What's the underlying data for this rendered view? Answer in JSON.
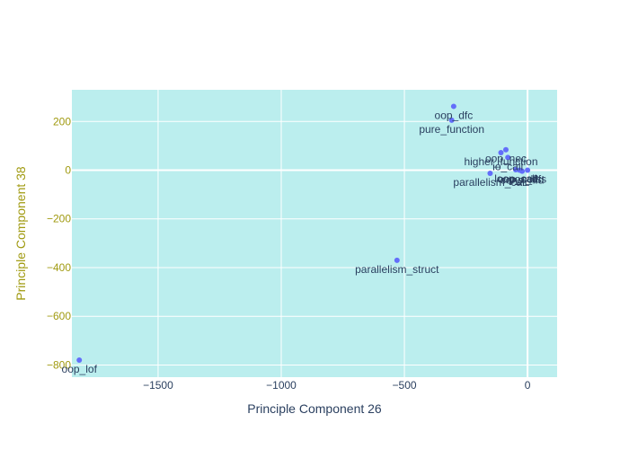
{
  "chart_data": {
    "type": "scatter",
    "title": "",
    "xlabel": "Principle Component 26",
    "ylabel": "Principle Component 38",
    "xlim": [
      -1850,
      120
    ],
    "ylim": [
      -850,
      330
    ],
    "x_ticks": [
      -1500,
      -1000,
      -500,
      0
    ],
    "y_ticks": [
      -800,
      -600,
      -400,
      -200,
      0,
      200
    ],
    "x_tick_labels": [
      "−1500",
      "−1000",
      "−500",
      "0"
    ],
    "y_tick_labels": [
      "−800",
      "−600",
      "−400",
      "−200",
      "0",
      "200"
    ],
    "grid": true,
    "colors": {
      "plot_bg": "#bbeeee",
      "grid": "#ffffff",
      "marker": "#636efa",
      "x_axis_text": "#2a3f5f",
      "y_axis_text": "#a09a10"
    },
    "points": [
      {
        "label": "oop_dfc",
        "x": -300,
        "y": 262
      },
      {
        "label": "pure_function",
        "x": -308,
        "y": 205
      },
      {
        "label": "oop_nec",
        "x": -88,
        "y": 84
      },
      {
        "label": "higher_function",
        "x": -108,
        "y": 72
      },
      {
        "label": "io_call",
        "x": -80,
        "y": 52
      },
      {
        "label": "parallelism_call",
        "x": -152,
        "y": -13
      },
      {
        "label": "oop_cdfs",
        "x": -32,
        "y": 0
      },
      {
        "label": "cons_nfd",
        "x": -22,
        "y": -4
      },
      {
        "label": "loop_call",
        "x": -48,
        "y": 2
      },
      {
        "label": "pos_dfs",
        "x": 0,
        "y": 0
      },
      {
        "label": "parallelism_struct",
        "x": -530,
        "y": -370
      },
      {
        "label": "oop_lof",
        "x": -1820,
        "y": -780
      }
    ]
  }
}
